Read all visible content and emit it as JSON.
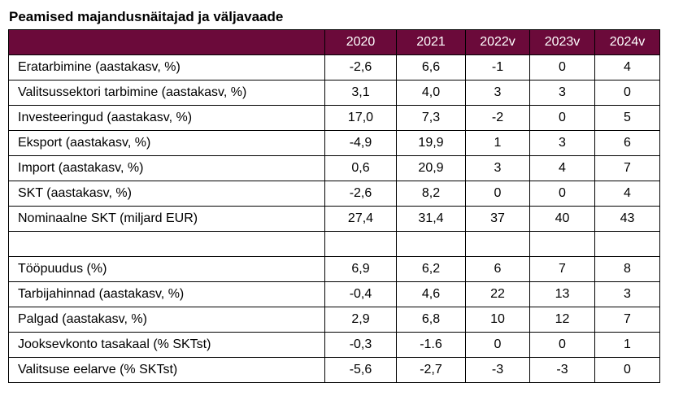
{
  "title": "Peamised majandusnäitajad ja väljavaade",
  "header": {
    "corner": "",
    "years": [
      "2020",
      "2021",
      "2022v",
      "2023v",
      "2024v"
    ]
  },
  "rows": [
    {
      "label": "Eratarbimine (aastakasv, %)",
      "values": [
        "-2,6",
        "6,6",
        "-1",
        "0",
        "4"
      ]
    },
    {
      "label": "Valitsussektori tarbimine (aastakasv, %)",
      "values": [
        "3,1",
        "4,0",
        "3",
        "3",
        "0"
      ]
    },
    {
      "label": "Investeeringud (aastakasv, %)",
      "values": [
        "17,0",
        "7,3",
        "-2",
        "0",
        "5"
      ]
    },
    {
      "label": "Eksport (aastakasv, %)",
      "values": [
        "-4,9",
        "19,9",
        "1",
        "3",
        "6"
      ]
    },
    {
      "label": "Import (aastakasv, %)",
      "values": [
        "0,6",
        "20,9",
        "3",
        "4",
        "7"
      ]
    },
    {
      "label": "SKT (aastakasv, %)",
      "values": [
        "-2,6",
        "8,2",
        "0",
        "0",
        "4"
      ]
    },
    {
      "label": "Nominaalne SKT (miljard EUR)",
      "values": [
        "27,4",
        "31,4",
        "37",
        "40",
        "43"
      ]
    },
    {
      "label": "",
      "values": [
        "",
        "",
        "",
        "",
        ""
      ]
    },
    {
      "label": "Tööpuudus (%)",
      "values": [
        "6,9",
        "6,2",
        "6",
        "7",
        "8"
      ]
    },
    {
      "label": "Tarbijahinnad (aastakasv, %)",
      "values": [
        "-0,4",
        "4,6",
        "22",
        "13",
        "3"
      ]
    },
    {
      "label": "Palgad (aastakasv, %)",
      "values": [
        "2,9",
        "6,8",
        "10",
        "12",
        "7"
      ]
    },
    {
      "label": "Jooksevkonto tasakaal (% SKTst)",
      "values": [
        "-0,3",
        "-1.6",
        "0",
        "0",
        "1"
      ]
    },
    {
      "label": "Valitsuse eelarve (% SKTst)",
      "values": [
        "-5,6",
        "-2,7",
        "-3",
        "-3",
        "0"
      ]
    }
  ],
  "colors": {
    "header_background": "#6b0a3a",
    "header_text": "#ffffff",
    "border": "#000000"
  }
}
